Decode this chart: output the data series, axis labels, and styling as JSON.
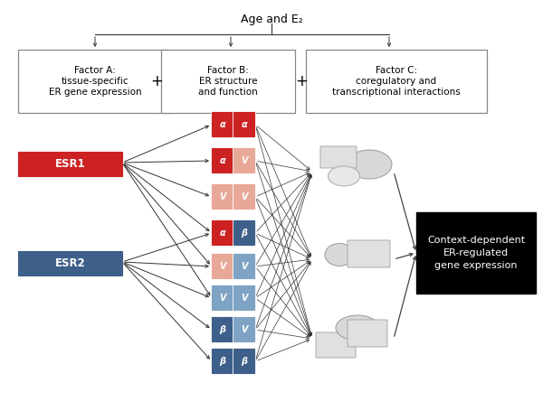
{
  "title": "Age and E₂",
  "factor_a_label": "Factor A:\ntissue-specific\nER gene expression",
  "factor_b_label": "Factor B:\nER structure\nand function",
  "factor_c_label": "Factor C:\ncoregulatory and\ntranscriptional interactions",
  "esr1_label": "ESR1",
  "esr1_color": "#cc2222",
  "esr2_label": "ESR2",
  "esr2_color": "#3d5f8a",
  "output_label": "Context-dependent\nER-regulated\ngene expression",
  "dimers": [
    {
      "lc": "#cc2222",
      "rc": "#cc2222",
      "ll": "α",
      "rl": "α"
    },
    {
      "lc": "#cc2222",
      "rc": "#e8a898",
      "ll": "α",
      "rl": "V"
    },
    {
      "lc": "#e8a898",
      "rc": "#e8a898",
      "ll": "V",
      "rl": "V"
    },
    {
      "lc": "#cc2222",
      "rc": "#3d5f8a",
      "ll": "α",
      "rl": "β"
    },
    {
      "lc": "#e8a898",
      "rc": "#7ea3c4",
      "ll": "V",
      "rl": "V"
    },
    {
      "lc": "#7ea3c4",
      "rc": "#7ea3c4",
      "ll": "V",
      "rl": "V"
    },
    {
      "lc": "#3d5f8a",
      "rc": "#7ea3c4",
      "ll": "β",
      "rl": "V"
    },
    {
      "lc": "#3d5f8a",
      "rc": "#3d5f8a",
      "ll": "β",
      "rl": "β"
    }
  ]
}
